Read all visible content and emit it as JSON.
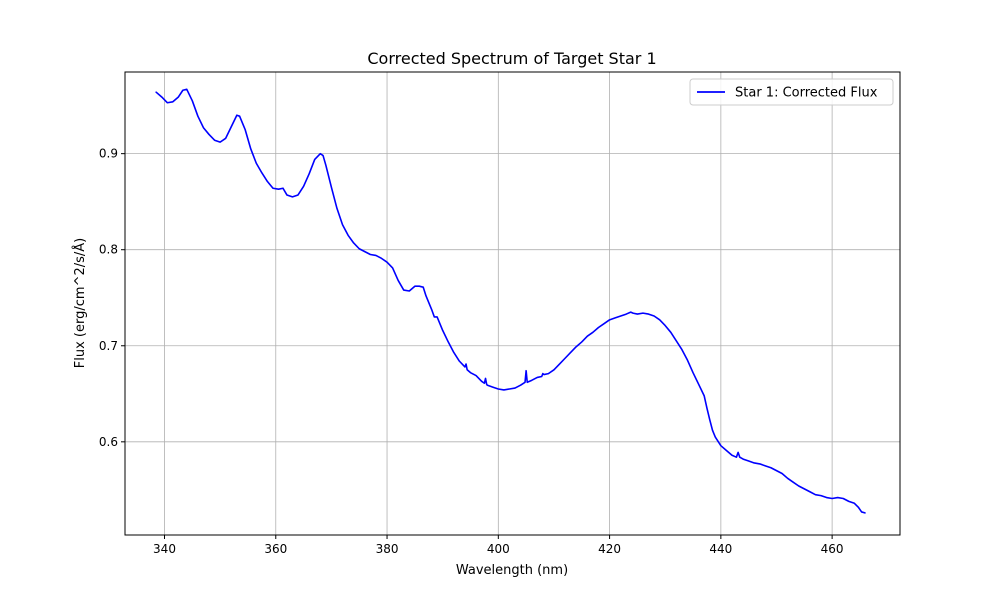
{
  "chart_data": {
    "type": "line",
    "title": "Corrected Spectrum of Target Star 1",
    "xlabel": "Wavelength (nm)",
    "ylabel": "Flux (erg/cm^2/s/Å)",
    "xlim": [
      332.9,
      472.2
    ],
    "ylim": [
      0.503,
      0.985
    ],
    "xticks": [
      340,
      360,
      380,
      400,
      420,
      440,
      460
    ],
    "yticks": [
      0.6,
      0.7,
      0.8,
      0.9
    ],
    "grid": true,
    "legend_position": "top-right",
    "series": [
      {
        "name": "Star 1: Corrected Flux",
        "color": "#0000ff",
        "x": [
          338.5,
          339.5,
          340.5,
          341.5,
          342.5,
          343.3,
          344.0,
          345.0,
          346.0,
          347.0,
          348.0,
          349.0,
          350.0,
          351.0,
          352.0,
          353.0,
          353.5,
          354.5,
          355.5,
          356.5,
          357.5,
          358.5,
          359.5,
          360.5,
          361.3,
          362.0,
          363.0,
          364.0,
          365.0,
          366.0,
          367.0,
          368.0,
          368.5,
          369.0,
          370.0,
          371.0,
          372.0,
          373.0,
          374.0,
          375.0,
          376.0,
          377.0,
          378.0,
          379.0,
          380.0,
          381.0,
          382.0,
          383.0,
          384.0,
          385.0,
          385.8,
          386.5,
          387.0,
          388.0,
          388.5,
          389.0,
          390.0,
          391.0,
          392.0,
          393.0,
          394.0,
          394.2,
          394.4,
          395.0,
          396.0,
          397.0,
          397.5,
          397.7,
          397.9,
          398.0,
          399.0,
          400.0,
          401.0,
          402.0,
          403.0,
          404.0,
          404.8,
          405.0,
          405.2,
          406.0,
          407.0,
          407.8,
          408.0,
          408.2,
          409.0,
          410.0,
          411.0,
          412.0,
          413.0,
          414.0,
          415.0,
          416.0,
          417.0,
          418.0,
          419.0,
          420.0,
          421.0,
          422.0,
          423.0,
          423.8,
          424.2,
          425.0,
          426.0,
          427.0,
          428.0,
          429.0,
          430.0,
          431.0,
          432.0,
          433.0,
          434.0,
          435.0,
          436.0,
          437.0,
          437.5,
          438.0,
          438.5,
          439.0,
          440.0,
          441.0,
          442.0,
          442.8,
          443.1,
          443.4,
          444.0,
          445.0,
          446.0,
          447.0,
          448.0,
          449.0,
          450.0,
          451.0,
          452.0,
          453.0,
          454.0,
          455.0,
          456.0,
          457.0,
          458.0,
          459.0,
          460.0,
          461.0,
          462.0,
          463.0,
          464.0,
          464.7,
          465.3,
          465.9
        ],
        "y": [
          0.964,
          0.959,
          0.953,
          0.954,
          0.959,
          0.966,
          0.967,
          0.955,
          0.939,
          0.927,
          0.92,
          0.914,
          0.912,
          0.916,
          0.928,
          0.94,
          0.939,
          0.925,
          0.905,
          0.89,
          0.88,
          0.871,
          0.864,
          0.863,
          0.864,
          0.857,
          0.855,
          0.857,
          0.866,
          0.879,
          0.894,
          0.9,
          0.898,
          0.888,
          0.865,
          0.843,
          0.826,
          0.815,
          0.807,
          0.801,
          0.798,
          0.795,
          0.794,
          0.791,
          0.787,
          0.781,
          0.768,
          0.758,
          0.757,
          0.762,
          0.762,
          0.761,
          0.752,
          0.738,
          0.73,
          0.73,
          0.716,
          0.704,
          0.693,
          0.684,
          0.678,
          0.681,
          0.675,
          0.672,
          0.669,
          0.663,
          0.661,
          0.666,
          0.66,
          0.659,
          0.657,
          0.655,
          0.654,
          0.655,
          0.656,
          0.659,
          0.662,
          0.674,
          0.662,
          0.664,
          0.667,
          0.668,
          0.671,
          0.67,
          0.671,
          0.675,
          0.681,
          0.687,
          0.693,
          0.699,
          0.704,
          0.71,
          0.714,
          0.719,
          0.723,
          0.727,
          0.729,
          0.731,
          0.733,
          0.735,
          0.734,
          0.733,
          0.734,
          0.733,
          0.731,
          0.727,
          0.721,
          0.714,
          0.705,
          0.696,
          0.685,
          0.672,
          0.66,
          0.648,
          0.635,
          0.623,
          0.612,
          0.605,
          0.596,
          0.591,
          0.586,
          0.584,
          0.589,
          0.584,
          0.582,
          0.58,
          0.578,
          0.577,
          0.575,
          0.573,
          0.57,
          0.567,
          0.562,
          0.558,
          0.554,
          0.551,
          0.548,
          0.545,
          0.544,
          0.542,
          0.541,
          0.542,
          0.541,
          0.538,
          0.536,
          0.532,
          0.527,
          0.526
        ]
      }
    ]
  }
}
